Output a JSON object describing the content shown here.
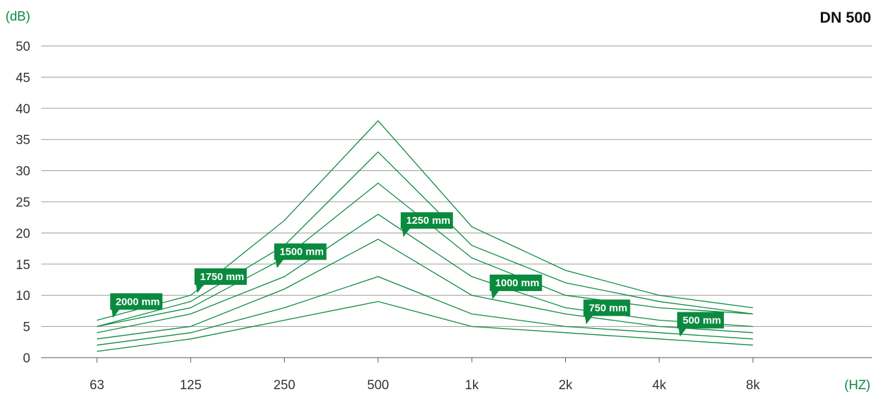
{
  "chart_data": {
    "type": "line",
    "title": "DN 500",
    "ylabel": "(dB)",
    "xlabel": "(HZ)",
    "categories": [
      "63",
      "125",
      "250",
      "500",
      "1k",
      "2k",
      "4k",
      "8k"
    ],
    "yticks": [
      0,
      5,
      10,
      15,
      20,
      25,
      30,
      35,
      40,
      45,
      50
    ],
    "ylim": [
      0,
      50
    ],
    "grid": "horizontal",
    "line_color": "#0a8a3e",
    "label_color": "#0a8a3e",
    "series": [
      {
        "name": "2000 mm",
        "values": [
          6,
          10,
          22,
          38,
          21,
          14,
          10,
          8
        ]
      },
      {
        "name": "1750 mm",
        "values": [
          5,
          9,
          18,
          33,
          18,
          12,
          9,
          7
        ]
      },
      {
        "name": "1500 mm",
        "values": [
          5,
          8,
          16,
          28,
          16,
          10,
          8,
          7
        ]
      },
      {
        "name": "1250 mm",
        "values": [
          4,
          7,
          13,
          23,
          13,
          8,
          6,
          5
        ]
      },
      {
        "name": "1000 mm",
        "values": [
          3,
          5,
          11,
          19,
          10,
          7,
          5,
          4
        ]
      },
      {
        "name": "750 mm",
        "values": [
          2,
          4,
          8,
          13,
          7,
          5,
          4,
          3
        ]
      },
      {
        "name": "500 mm",
        "values": [
          1,
          3,
          6,
          9,
          5,
          4,
          3,
          2
        ]
      }
    ],
    "annotations": [
      {
        "text": "2000 mm",
        "x_index": 0.2,
        "y": 9
      },
      {
        "text": "1750 mm",
        "x_index": 1.1,
        "y": 13
      },
      {
        "text": "1500 mm",
        "x_index": 1.95,
        "y": 17
      },
      {
        "text": "1250 mm",
        "x_index": 3.3,
        "y": 22
      },
      {
        "text": "1000 mm",
        "x_index": 4.25,
        "y": 12
      },
      {
        "text": "750 mm",
        "x_index": 5.25,
        "y": 8
      },
      {
        "text": "500 mm",
        "x_index": 6.25,
        "y": 6
      }
    ]
  }
}
